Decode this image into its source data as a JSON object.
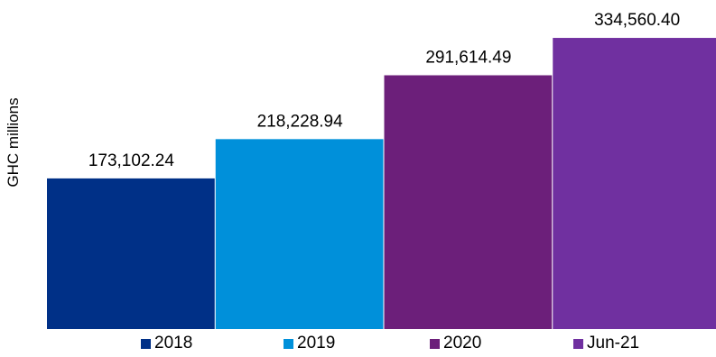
{
  "chart_data": {
    "type": "bar",
    "categories": [
      "2018",
      "2019",
      "2020",
      "Jun-21"
    ],
    "values": [
      173102.24,
      218228.94,
      291614.49,
      334560.4
    ],
    "value_labels": [
      "173,102.24",
      "218,228.94",
      "291,614.49",
      "334,560.40"
    ],
    "colors": [
      "#003087",
      "#0090DA",
      "#6C1F7A",
      "#7030A0"
    ],
    "ylabel": "GHC millions",
    "ylim": [
      0,
      346000
    ],
    "grid": false,
    "legend_position": "bottom",
    "legend": [
      "2018",
      "2019",
      "2020",
      "Jun-21"
    ]
  }
}
